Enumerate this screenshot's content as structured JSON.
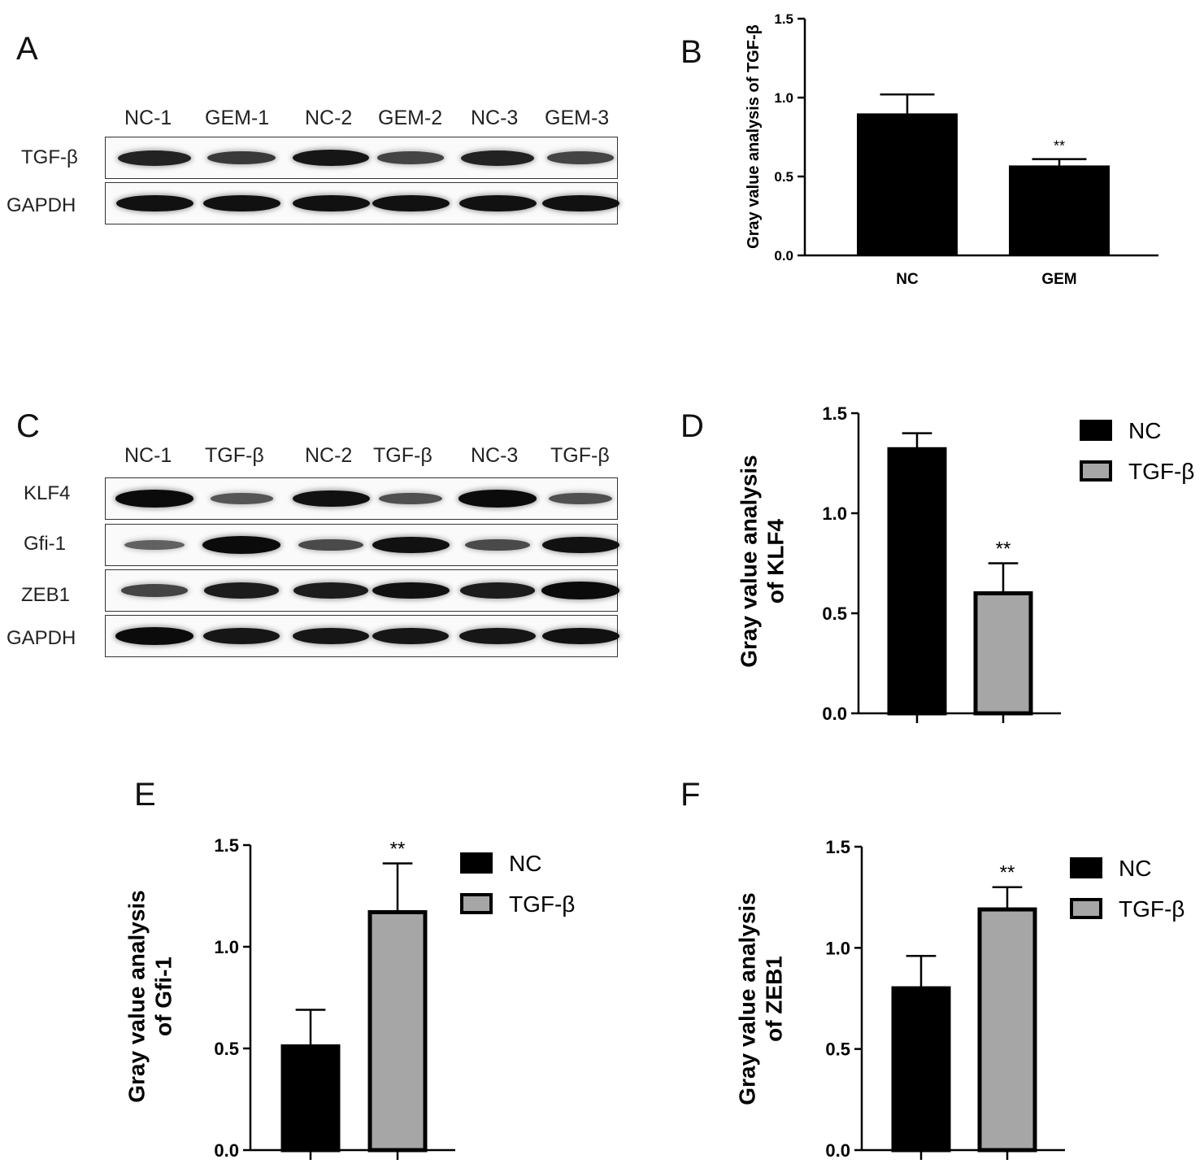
{
  "panels": {
    "A": {
      "letter": "A",
      "lanes": [
        "NC-1",
        "GEM-1",
        "NC-2",
        "GEM-2",
        "NC-3",
        "GEM-3"
      ],
      "rows": [
        "TGF-β",
        "GAPDH"
      ],
      "intensity": [
        [
          0.75,
          0.55,
          0.85,
          0.45,
          0.75,
          0.45
        ],
        [
          0.9,
          0.9,
          0.9,
          0.9,
          0.9,
          0.9
        ]
      ]
    },
    "B": {
      "letter": "B"
    },
    "C": {
      "letter": "C",
      "lanes": [
        "NC-1",
        "TGF-β",
        "NC-2",
        "TGF-β",
        "NC-3",
        "TGF-β"
      ],
      "rows": [
        "KLF4",
        "Gfi-1",
        "ZEB1",
        "GAPDH"
      ],
      "intensity": [
        [
          0.95,
          0.3,
          0.9,
          0.35,
          0.95,
          0.35
        ],
        [
          0.2,
          0.95,
          0.4,
          0.9,
          0.4,
          0.9
        ],
        [
          0.45,
          0.8,
          0.8,
          0.9,
          0.8,
          0.95
        ],
        [
          0.95,
          0.85,
          0.85,
          0.85,
          0.85,
          0.9
        ]
      ]
    },
    "D": {
      "letter": "D"
    },
    "E": {
      "letter": "E"
    },
    "F": {
      "letter": "F"
    }
  },
  "chart_data": [
    {
      "panel": "B",
      "type": "bar",
      "categories": [
        "NC",
        "GEM"
      ],
      "values": [
        0.9,
        0.57
      ],
      "errors": [
        0.12,
        0.04
      ],
      "colors": [
        "#000000",
        "#000000"
      ],
      "significance": [
        "",
        "**"
      ],
      "ylabel": "Gray value analysis of TGF-β",
      "ylim": [
        0,
        1.5
      ],
      "yticks": [
        "0.0",
        "0.5",
        "1.0",
        "1.5"
      ],
      "legend": null
    },
    {
      "panel": "D",
      "type": "bar",
      "categories": [
        "NC",
        "TGF-β"
      ],
      "values": [
        1.32,
        0.6
      ],
      "errors": [
        0.08,
        0.15
      ],
      "colors": [
        "#000000",
        "#a6a6a6"
      ],
      "significance": [
        "",
        "**"
      ],
      "ylabel_lines": [
        "Gray value analysis",
        "of KLF4"
      ],
      "ylim": [
        0,
        1.5
      ],
      "yticks": [
        "0.0",
        "0.5",
        "1.0",
        "1.5"
      ],
      "legend": [
        "NC",
        "TGF-β"
      ]
    },
    {
      "panel": "E",
      "type": "bar",
      "categories": [
        "NC",
        "TGF-β"
      ],
      "values": [
        0.51,
        1.17
      ],
      "errors": [
        0.18,
        0.24
      ],
      "colors": [
        "#000000",
        "#a6a6a6"
      ],
      "significance": [
        "",
        "**"
      ],
      "ylabel_lines": [
        "Gray value analysis",
        "of Gfi-1"
      ],
      "ylim": [
        0,
        1.5
      ],
      "yticks": [
        "0.0",
        "0.5",
        "1.0",
        "1.5"
      ],
      "legend": [
        "NC",
        "TGF-β"
      ]
    },
    {
      "panel": "F",
      "type": "bar",
      "categories": [
        "NC",
        "TGF-β"
      ],
      "values": [
        0.8,
        1.19
      ],
      "errors": [
        0.16,
        0.11
      ],
      "colors": [
        "#000000",
        "#a6a6a6"
      ],
      "significance": [
        "",
        "**"
      ],
      "ylabel_lines": [
        "Gray value analysis",
        "of ZEB1"
      ],
      "ylim": [
        0,
        1.5
      ],
      "yticks": [
        "0.0",
        "0.5",
        "1.0",
        "1.5"
      ],
      "legend": [
        "NC",
        "TGF-β"
      ]
    }
  ]
}
